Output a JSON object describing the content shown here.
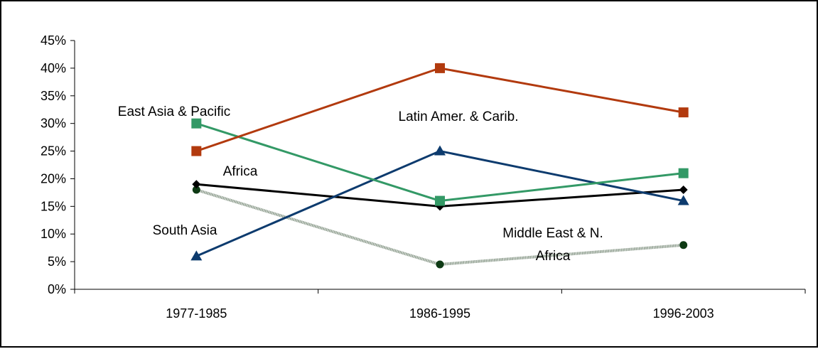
{
  "chart_data": {
    "type": "line",
    "categories": [
      "1977-1985",
      "1986-1995",
      "1996-2003"
    ],
    "y_tick_labels": [
      "0%",
      "5%",
      "10%",
      "15%",
      "20%",
      "25%",
      "30%",
      "35%",
      "40%",
      "45%"
    ],
    "ylim": [
      0,
      45
    ],
    "y_unit": "%",
    "grid": false,
    "legend": "none (series labeled directly on the plot)",
    "series": [
      {
        "name": "Latin Amer. & Carib.",
        "label_lines": [
          "Latin Amer. & Carib."
        ],
        "values": [
          25,
          40,
          32
        ],
        "color": "#B23A0E",
        "marker": "square"
      },
      {
        "name": "East Asia & Pacific",
        "label_lines": [
          "East Asia & Pacific"
        ],
        "values": [
          30,
          16,
          21
        ],
        "color": "#339966",
        "marker": "square"
      },
      {
        "name": "Africa",
        "label_lines": [
          "Africa"
        ],
        "values": [
          19,
          15,
          18
        ],
        "color": "#000000",
        "marker": "diamond"
      },
      {
        "name": "South Asia",
        "label_lines": [
          "South Asia"
        ],
        "values": [
          6,
          25,
          16
        ],
        "color": "#0D3B6E",
        "marker": "triangle"
      },
      {
        "name": "Middle East & N. Africa",
        "label_lines": [
          "Middle East & N.",
          "Africa"
        ],
        "values": [
          18,
          4.5,
          8
        ],
        "color": "#8A9A8A",
        "marker_color": "#0E3A14",
        "marker": "circle"
      }
    ]
  }
}
